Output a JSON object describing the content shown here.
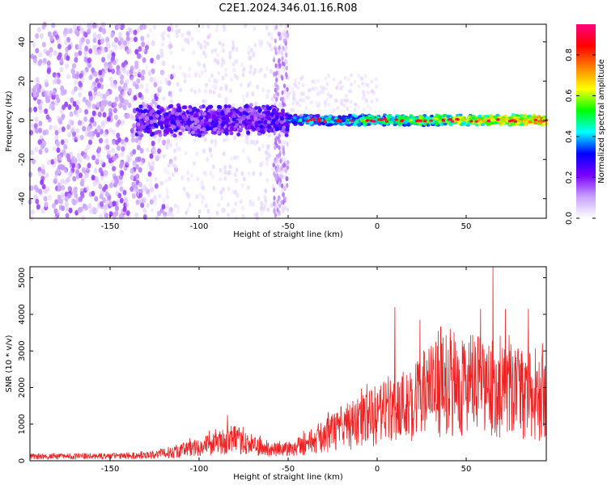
{
  "title": "C2E1.2024.346.01.16.R08",
  "chart_data": [
    {
      "type": "heatmap",
      "xlabel": "Height of straight line (km)",
      "ylabel": "Frequency (Hz)",
      "xlim": [
        -195,
        95
      ],
      "ylim": [
        -50,
        49
      ],
      "xticks": [
        -150,
        -100,
        -50,
        0,
        50
      ],
      "yticks": [
        -40,
        -20,
        0,
        20,
        40
      ],
      "colorbar": {
        "label": "Normalized spectral amplitude",
        "range": [
          0,
          0.95
        ],
        "ticks": [
          0.0,
          0.2,
          0.4,
          0.6,
          0.8
        ],
        "colormap": [
          "#ffffff",
          "#c8a0ff",
          "#7a00ff",
          "#0000ff",
          "#00ffff",
          "#00ff00",
          "#ffff00",
          "#ff8000",
          "#ff0000",
          "#ff0080"
        ]
      },
      "regions": [
        {
          "x_range": [
            -195,
            -130
          ],
          "description": "broadband noise",
          "typical_amplitude": 0.1
        },
        {
          "x_range": [
            -130,
            -50
          ],
          "center_frequency": 0,
          "spread_hz": 8,
          "typical_amplitude": 0.15
        },
        {
          "x_range": [
            -50,
            95
          ],
          "center_frequency": 0,
          "spread_hz": 3,
          "typical_amplitude": 0.6
        }
      ]
    },
    {
      "type": "line",
      "xlabel": "Height of straight line (km)",
      "ylabel": "SNR (10 * v/v)",
      "xlim": [
        -195,
        95
      ],
      "ylim": [
        0,
        5300
      ],
      "xticks": [
        -150,
        -100,
        -50,
        0,
        50
      ],
      "yticks": [
        0,
        1000,
        2000,
        3000,
        4000,
        5000
      ],
      "color": "#ee2222",
      "envelope": {
        "x": [
          -195,
          -150,
          -130,
          -115,
          -100,
          -90,
          -80,
          -70,
          -60,
          -50,
          -40,
          -30,
          -20,
          -10,
          0,
          10,
          20,
          30,
          40,
          50,
          60,
          70,
          80,
          95
        ],
        "y": [
          120,
          130,
          150,
          250,
          400,
          500,
          600,
          450,
          300,
          350,
          500,
          700,
          900,
          1100,
          1300,
          1500,
          1700,
          2000,
          2200,
          2200,
          2100,
          2000,
          1900,
          1800
        ]
      },
      "peaks": {
        "x": [
          -84,
          10,
          24,
          41,
          58,
          65,
          72,
          85
        ],
        "y": [
          1250,
          4200,
          3850,
          3600,
          4150,
          5300,
          4150,
          4150
        ]
      }
    }
  ]
}
